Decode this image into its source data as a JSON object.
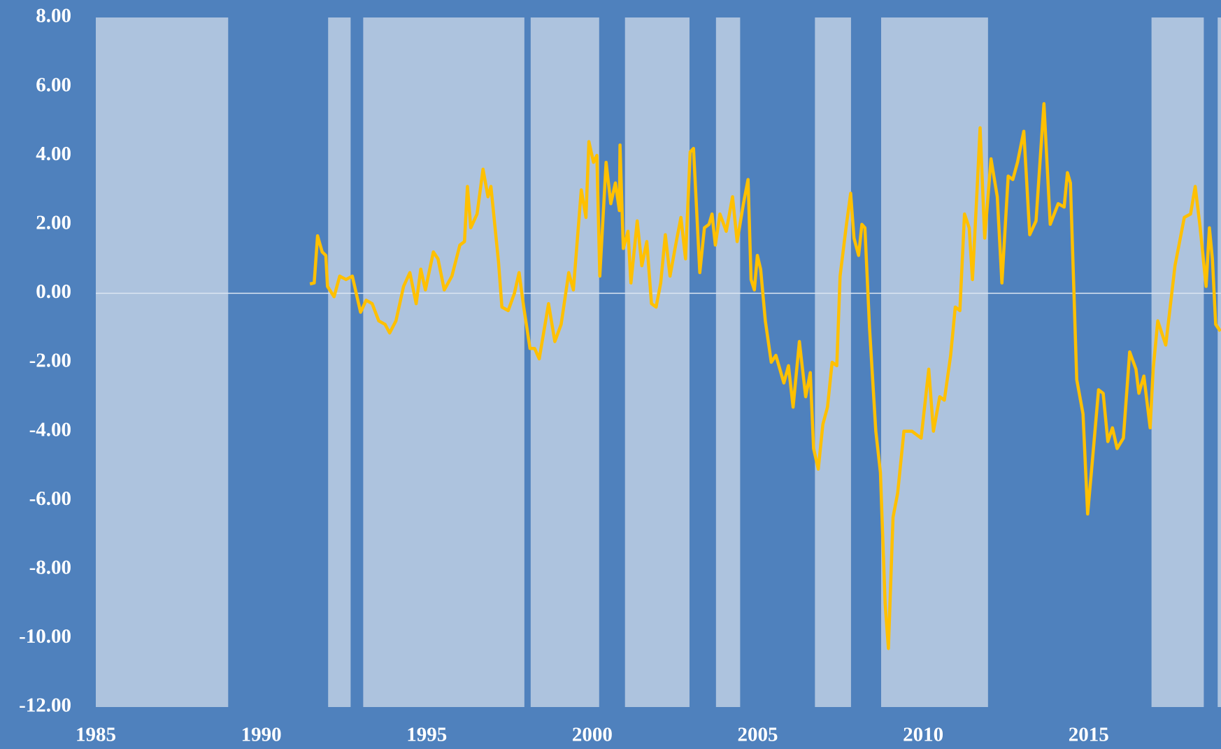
{
  "chart_data": {
    "type": "line",
    "xlim": [
      1985,
      2019
    ],
    "xticks": [
      1985,
      1990,
      1995,
      2000,
      2005,
      2010,
      2015
    ],
    "ylim": [
      -12,
      8
    ],
    "yticks": [
      {
        "value": 8,
        "label": "8.00"
      },
      {
        "value": 6,
        "label": "6.00"
      },
      {
        "value": 4,
        "label": "4.00"
      },
      {
        "value": 2,
        "label": "2.00"
      },
      {
        "value": 0,
        "label": "0.00"
      },
      {
        "value": -2,
        "label": "-2.00"
      },
      {
        "value": -4,
        "label": "-4.00"
      },
      {
        "value": -6,
        "label": "-6.00"
      },
      {
        "value": -8,
        "label": "-8.00"
      },
      {
        "value": -10,
        "label": "-10.00"
      },
      {
        "value": -12,
        "label": "-12.00"
      }
    ],
    "background_color": "#4f81bd",
    "shade_color": "#adc3de",
    "zero_line_color": "#dce6f2",
    "shaded_periods": [
      [
        1985.0,
        1989.0
      ],
      [
        1992.02,
        1992.7
      ],
      [
        1993.08,
        1997.95
      ],
      [
        1998.14,
        2000.21
      ],
      [
        2000.99,
        2002.94
      ],
      [
        2003.74,
        2004.47
      ],
      [
        2006.73,
        2007.82
      ],
      [
        2008.73,
        2011.96
      ],
      [
        2016.9,
        2018.48
      ],
      [
        2018.9,
        2019.0
      ]
    ],
    "color": "#ffc000",
    "x": [
      1991.47,
      1991.6,
      1991.7,
      1991.84,
      1991.95,
      1992.0,
      1992.2,
      1992.37,
      1992.56,
      1992.75,
      1993.0,
      1993.17,
      1993.35,
      1993.55,
      1993.74,
      1993.88,
      1994.07,
      1994.3,
      1994.49,
      1994.68,
      1994.82,
      1994.96,
      1995.2,
      1995.34,
      1995.53,
      1995.76,
      1996.0,
      1996.14,
      1996.23,
      1996.33,
      1996.52,
      1996.7,
      1996.85,
      1996.94,
      1997.17,
      1997.27,
      1997.46,
      1997.65,
      1997.79,
      1997.93,
      1998.12,
      1998.26,
      1998.4,
      1998.68,
      1998.87,
      1999.06,
      1999.29,
      1999.43,
      1999.67,
      1999.81,
      1999.9,
      2000.04,
      2000.14,
      2000.23,
      2000.42,
      2000.56,
      2000.7,
      2000.82,
      2000.84,
      2000.94,
      2001.08,
      2001.17,
      2001.36,
      2001.5,
      2001.65,
      2001.79,
      2001.93,
      2002.07,
      2002.21,
      2002.35,
      2002.54,
      2002.68,
      2002.82,
      2002.96,
      2003.06,
      2003.25,
      2003.39,
      2003.53,
      2003.62,
      2003.72,
      2003.86,
      2004.05,
      2004.24,
      2004.38,
      2004.57,
      2004.71,
      2004.8,
      2004.9,
      2004.99,
      2005.09,
      2005.23,
      2005.41,
      2005.55,
      2005.79,
      2005.93,
      2006.07,
      2006.26,
      2006.45,
      2006.59,
      2006.69,
      2006.83,
      2006.97,
      2007.11,
      2007.25,
      2007.39,
      2007.49,
      2007.67,
      2007.81,
      2007.91,
      2008.05,
      2008.15,
      2008.24,
      2008.38,
      2008.57,
      2008.71,
      2008.85,
      2008.95,
      2009.09,
      2009.23,
      2009.42,
      2009.66,
      2009.94,
      2010.17,
      2010.31,
      2010.5,
      2010.64,
      2010.83,
      2010.97,
      2011.11,
      2011.25,
      2011.39,
      2011.49,
      2011.63,
      2011.72,
      2011.86,
      2012.05,
      2012.24,
      2012.38,
      2012.57,
      2012.71,
      2012.85,
      2013.04,
      2013.22,
      2013.41,
      2013.65,
      2013.84,
      2014.08,
      2014.26,
      2014.36,
      2014.45,
      2014.64,
      2014.83,
      2014.97,
      2015.11,
      2015.3,
      2015.44,
      2015.58,
      2015.72,
      2015.86,
      2016.05,
      2016.24,
      2016.43,
      2016.52,
      2016.67,
      2016.86,
      2016.95,
      2017.09,
      2017.33,
      2017.61,
      2017.89,
      2018.08,
      2018.22,
      2018.36,
      2018.55,
      2018.65,
      2018.74,
      2018.84,
      2018.98
    ],
    "values": [
      0.27,
      0.3,
      1.67,
      1.2,
      1.1,
      0.2,
      -0.1,
      0.5,
      0.4,
      0.5,
      -0.55,
      -0.2,
      -0.3,
      -0.8,
      -0.9,
      -1.15,
      -0.8,
      0.2,
      0.6,
      -0.3,
      0.7,
      0.1,
      1.2,
      1.0,
      0.1,
      0.5,
      1.4,
      1.5,
      3.1,
      1.9,
      2.3,
      3.6,
      2.8,
      3.1,
      0.9,
      -0.4,
      -0.5,
      0.0,
      0.6,
      -0.4,
      -1.6,
      -1.6,
      -1.9,
      -0.3,
      -1.4,
      -0.9,
      0.6,
      0.1,
      3.0,
      2.2,
      4.4,
      3.8,
      4.0,
      0.5,
      3.8,
      2.6,
      3.2,
      2.4,
      4.3,
      1.3,
      1.8,
      0.3,
      2.1,
      0.8,
      1.5,
      -0.3,
      -0.4,
      0.3,
      1.7,
      0.5,
      1.5,
      2.2,
      1.0,
      4.1,
      4.2,
      0.6,
      1.9,
      2.0,
      2.3,
      1.4,
      2.3,
      1.8,
      2.8,
      1.5,
      2.6,
      3.3,
      0.4,
      0.1,
      1.1,
      0.7,
      -0.8,
      -2.0,
      -1.8,
      -2.6,
      -2.1,
      -3.3,
      -1.4,
      -3.0,
      -2.3,
      -4.5,
      -5.1,
      -3.8,
      -3.3,
      -2.0,
      -2.1,
      0.5,
      1.9,
      2.9,
      1.6,
      1.1,
      2.0,
      1.9,
      -1.0,
      -4.0,
      -5.2,
      -9.0,
      -10.3,
      -6.5,
      -5.8,
      -4.0,
      -4.0,
      -4.2,
      -2.2,
      -4.0,
      -3.0,
      -3.1,
      -1.8,
      -0.4,
      -0.5,
      2.3,
      1.9,
      0.4,
      3.0,
      4.8,
      1.6,
      3.9,
      2.8,
      0.3,
      3.4,
      3.3,
      3.8,
      4.7,
      1.7,
      2.1,
      5.5,
      2.0,
      2.6,
      2.5,
      3.5,
      3.2,
      -2.5,
      -3.5,
      -6.4,
      -4.9,
      -2.8,
      -2.9,
      -4.3,
      -3.9,
      -4.5,
      -4.2,
      -1.7,
      -2.2,
      -2.9,
      -2.4,
      -3.9,
      -2.2,
      -0.8,
      -1.5,
      0.8,
      2.2,
      2.3,
      3.1,
      2.0,
      0.2,
      1.9,
      1.0,
      -0.9,
      -1.1
    ]
  }
}
